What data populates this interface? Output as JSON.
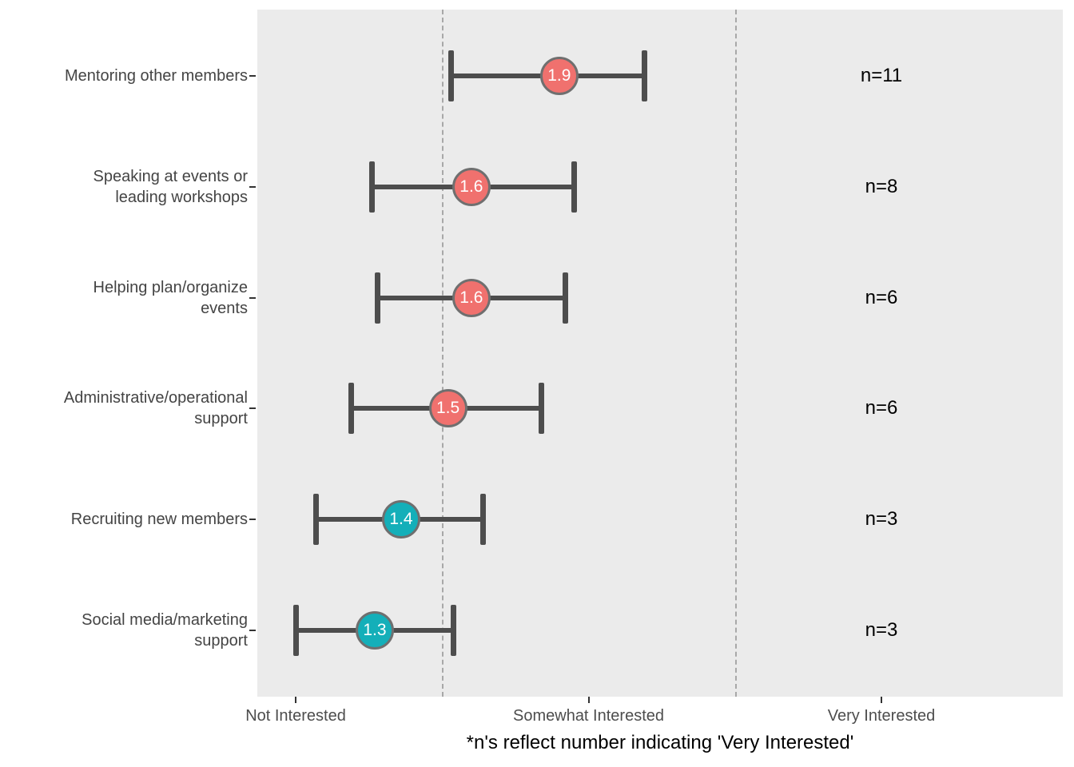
{
  "figure": {
    "caption": "*n's reflect number indicating 'Very Interested'"
  },
  "chart_data": {
    "type": "scatter",
    "subtype": "horizontal-dot-plot-with-error-bars",
    "title": "",
    "xlabel": "*n's reflect number indicating 'Very Interested'",
    "ylabel": "",
    "x_range": [
      0.87,
      3.62
    ],
    "grid": "off",
    "legend": "none",
    "x_axis": {
      "ticks": [
        {
          "value": 1,
          "label": "Not Interested"
        },
        {
          "value": 2,
          "label": "Somewhat Interested"
        },
        {
          "value": 3,
          "label": "Very Interested"
        }
      ]
    },
    "reference_lines": {
      "values": [
        1.5,
        2.5
      ],
      "style": "dashed"
    },
    "rows": [
      {
        "category": "Mentoring other members",
        "label_lines": [
          "Mentoring other members"
        ],
        "mean": 1.9,
        "mean_label": "1.9",
        "err_low": 1.53,
        "err_high": 2.19,
        "n": 11,
        "n_label": "n=11",
        "color": "#F0716E"
      },
      {
        "category": "Speaking at events or leading workshops",
        "label_lines": [
          "Speaking at events or",
          "leading workshops"
        ],
        "mean": 1.6,
        "mean_label": "1.6",
        "err_low": 1.26,
        "err_high": 1.95,
        "n": 8,
        "n_label": "n=8",
        "color": "#F0716E"
      },
      {
        "category": "Helping plan/organize events",
        "label_lines": [
          "Helping plan/organize",
          "events"
        ],
        "mean": 1.6,
        "mean_label": "1.6",
        "err_low": 1.28,
        "err_high": 1.92,
        "n": 6,
        "n_label": "n=6",
        "color": "#F0716E"
      },
      {
        "category": "Administrative/operational support",
        "label_lines": [
          "Administrative/operational",
          "support"
        ],
        "mean": 1.52,
        "mean_label": "1.5",
        "err_low": 1.19,
        "err_high": 1.84,
        "n": 6,
        "n_label": "n=6",
        "color": "#F0716E"
      },
      {
        "category": "Recruiting new members",
        "label_lines": [
          "Recruiting new members"
        ],
        "mean": 1.36,
        "mean_label": "1.4",
        "err_low": 1.07,
        "err_high": 1.64,
        "n": 3,
        "n_label": "n=3",
        "color": "#14AFB9"
      },
      {
        "category": "Social media/marketing support",
        "label_lines": [
          "Social media/marketing",
          "support"
        ],
        "mean": 1.27,
        "mean_label": "1.3",
        "err_low": 1.0,
        "err_high": 1.54,
        "n": 3,
        "n_label": "n=3",
        "color": "#14AFB9"
      }
    ],
    "colors": {
      "high_interest_point": "#F0716E",
      "low_interest_point": "#14AFB9",
      "errorbar": "#4D4D4D",
      "panel_background": "#EBEBEB",
      "reference_line": "#A8A8A8",
      "axis_text": "#4D4D4D"
    }
  }
}
